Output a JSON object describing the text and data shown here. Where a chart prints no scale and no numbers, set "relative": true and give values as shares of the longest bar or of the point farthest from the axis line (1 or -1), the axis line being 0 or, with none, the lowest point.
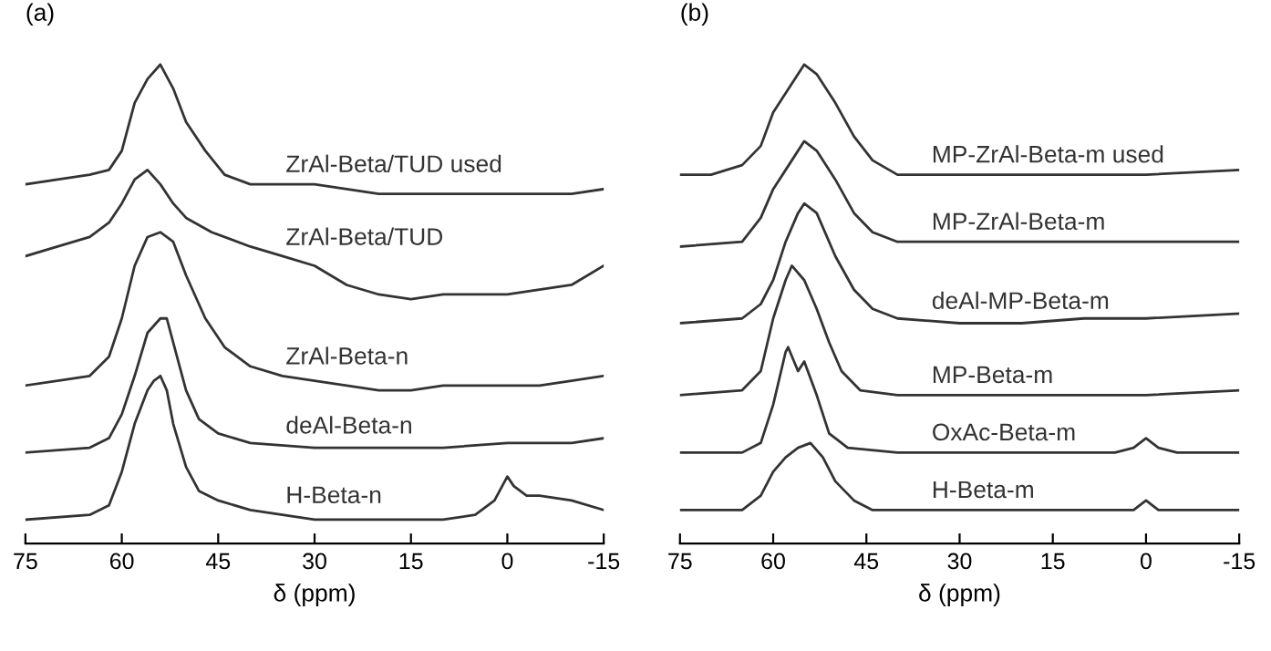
{
  "chart_data": [
    {
      "type": "line",
      "title": "(a)",
      "xlabel": "δ (ppm)",
      "relative": true,
      "xlim": [
        75,
        -15
      ],
      "xticks": [
        75,
        60,
        45,
        30,
        15,
        0,
        -15
      ],
      "grid": false,
      "legend": false,
      "marker": "none",
      "line_style": "solid",
      "tick_labels": "x",
      "series": [
        {
          "name": "ZrAl-Beta/TUD used",
          "color": "#333333",
          "x": [
            75,
            70,
            65,
            62,
            60,
            58,
            56,
            54,
            52,
            50,
            47,
            44,
            40,
            35,
            30,
            25,
            20,
            15,
            10,
            5,
            0,
            -5,
            -10,
            -15
          ],
          "values": [
            0.75,
            0.76,
            0.77,
            0.78,
            0.82,
            0.92,
            0.97,
            1.0,
            0.95,
            0.88,
            0.82,
            0.77,
            0.75,
            0.75,
            0.75,
            0.74,
            0.73,
            0.73,
            0.73,
            0.73,
            0.73,
            0.73,
            0.73,
            0.74
          ]
        },
        {
          "name": "ZrAl-Beta/TUD",
          "color": "#333333",
          "x": [
            75,
            70,
            65,
            62,
            60,
            58,
            56,
            54,
            52,
            50,
            46,
            40,
            35,
            30,
            25,
            20,
            15,
            10,
            5,
            0,
            -5,
            -10,
            -15
          ],
          "values": [
            0.6,
            0.62,
            0.64,
            0.67,
            0.71,
            0.76,
            0.78,
            0.75,
            0.71,
            0.68,
            0.65,
            0.62,
            0.6,
            0.58,
            0.54,
            0.52,
            0.51,
            0.52,
            0.52,
            0.52,
            0.53,
            0.54,
            0.58
          ]
        },
        {
          "name": "ZrAl-Beta-n",
          "color": "#333333",
          "x": [
            75,
            70,
            65,
            62,
            60,
            58,
            56,
            54,
            52,
            50,
            47,
            44,
            40,
            35,
            30,
            25,
            20,
            15,
            10,
            5,
            0,
            -5,
            -10,
            -15
          ],
          "values": [
            0.33,
            0.34,
            0.35,
            0.39,
            0.47,
            0.58,
            0.64,
            0.65,
            0.63,
            0.56,
            0.47,
            0.41,
            0.37,
            0.35,
            0.34,
            0.33,
            0.32,
            0.32,
            0.33,
            0.33,
            0.33,
            0.33,
            0.34,
            0.35
          ]
        },
        {
          "name": "deAl-Beta-n",
          "color": "#333333",
          "x": [
            75,
            65,
            62,
            60,
            58,
            56,
            54,
            53,
            52,
            50,
            48,
            45,
            40,
            30,
            20,
            10,
            0,
            -10,
            -15
          ],
          "values": [
            0.19,
            0.2,
            0.22,
            0.27,
            0.35,
            0.44,
            0.47,
            0.47,
            0.42,
            0.32,
            0.26,
            0.23,
            0.21,
            0.2,
            0.2,
            0.2,
            0.21,
            0.21,
            0.22
          ]
        },
        {
          "name": "H-Beta-n",
          "color": "#333333",
          "x": [
            75,
            65,
            62,
            60,
            58,
            56,
            55,
            54,
            53,
            52,
            50,
            48,
            45,
            40,
            30,
            20,
            10,
            5,
            2,
            0,
            -1,
            -3,
            -5,
            -10,
            -15
          ],
          "values": [
            0.05,
            0.06,
            0.08,
            0.15,
            0.25,
            0.32,
            0.34,
            0.35,
            0.32,
            0.25,
            0.16,
            0.11,
            0.09,
            0.07,
            0.05,
            0.05,
            0.05,
            0.06,
            0.09,
            0.14,
            0.12,
            0.1,
            0.1,
            0.09,
            0.07
          ]
        }
      ]
    },
    {
      "type": "line",
      "title": "(b)",
      "xlabel": "δ (ppm)",
      "relative": true,
      "xlim": [
        75,
        -15
      ],
      "xticks": [
        75,
        60,
        45,
        30,
        15,
        0,
        -15
      ],
      "grid": false,
      "legend": false,
      "marker": "none",
      "line_style": "solid",
      "tick_labels": "x",
      "series": [
        {
          "name": "MP-ZrAl-Beta-m used",
          "color": "#333333",
          "x": [
            75,
            70,
            65,
            62,
            60,
            57,
            55,
            53,
            50,
            47,
            44,
            40,
            30,
            20,
            10,
            0,
            -15
          ],
          "values": [
            0.77,
            0.77,
            0.79,
            0.83,
            0.9,
            0.96,
            1.0,
            0.98,
            0.92,
            0.85,
            0.8,
            0.77,
            0.77,
            0.77,
            0.77,
            0.77,
            0.78
          ]
        },
        {
          "name": "MP-ZrAl-Beta-m",
          "color": "#333333",
          "x": [
            75,
            65,
            62,
            60,
            57,
            55,
            53,
            50,
            47,
            44,
            40,
            30,
            20,
            10,
            0,
            -15
          ],
          "values": [
            0.62,
            0.63,
            0.68,
            0.74,
            0.8,
            0.84,
            0.82,
            0.76,
            0.69,
            0.65,
            0.63,
            0.63,
            0.63,
            0.63,
            0.63,
            0.63
          ]
        },
        {
          "name": "deAl-MP-Beta-m",
          "color": "#333333",
          "x": [
            75,
            65,
            62,
            60,
            58,
            56,
            55,
            53,
            50,
            47,
            44,
            40,
            30,
            20,
            10,
            0,
            -15
          ],
          "values": [
            0.46,
            0.47,
            0.5,
            0.55,
            0.63,
            0.69,
            0.71,
            0.69,
            0.6,
            0.53,
            0.49,
            0.47,
            0.46,
            0.46,
            0.47,
            0.47,
            0.48
          ]
        },
        {
          "name": "MP-Beta-m",
          "color": "#333333",
          "x": [
            75,
            65,
            62,
            60,
            58,
            57,
            55,
            53,
            51,
            49,
            46,
            40,
            30,
            20,
            10,
            0,
            -15
          ],
          "values": [
            0.31,
            0.32,
            0.36,
            0.47,
            0.55,
            0.58,
            0.55,
            0.49,
            0.42,
            0.36,
            0.32,
            0.31,
            0.31,
            0.31,
            0.31,
            0.31,
            0.32
          ]
        },
        {
          "name": "OxAc-Beta-m",
          "color": "#333333",
          "x": [
            75,
            65,
            62,
            60,
            58,
            57.6,
            56,
            55,
            53,
            51,
            48,
            40,
            20,
            5,
            2,
            0,
            -2,
            -5,
            -15
          ],
          "values": [
            0.19,
            0.19,
            0.21,
            0.29,
            0.4,
            0.41,
            0.36,
            0.38,
            0.31,
            0.23,
            0.2,
            0.19,
            0.19,
            0.19,
            0.2,
            0.22,
            0.2,
            0.19,
            0.19
          ]
        },
        {
          "name": "H-Beta-m",
          "color": "#333333",
          "x": [
            75,
            65,
            62,
            60,
            58,
            56,
            54,
            52,
            50,
            47,
            44,
            40,
            20,
            5,
            2,
            0,
            -2,
            -5,
            -15
          ],
          "values": [
            0.07,
            0.07,
            0.1,
            0.15,
            0.18,
            0.2,
            0.21,
            0.18,
            0.13,
            0.09,
            0.07,
            0.07,
            0.07,
            0.07,
            0.07,
            0.09,
            0.07,
            0.07,
            0.07
          ]
        }
      ]
    }
  ]
}
